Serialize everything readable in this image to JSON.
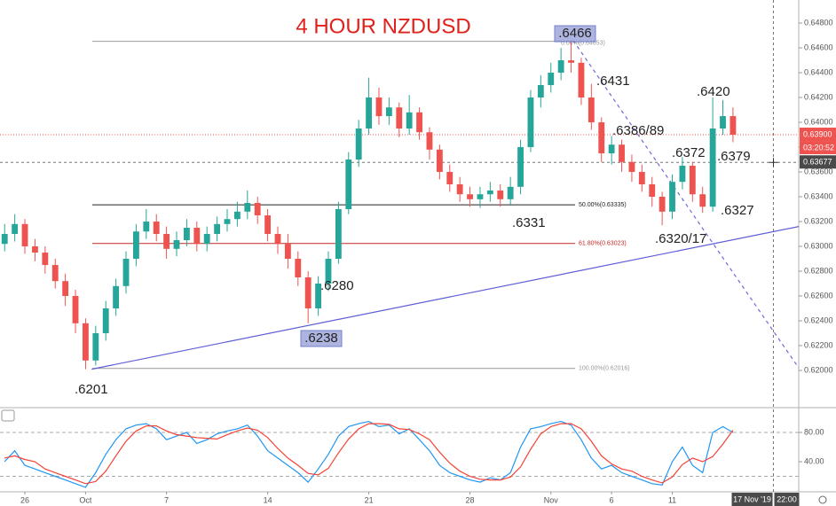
{
  "chart_data": [
    {
      "type": "candlestick",
      "title": "4 HOUR NZDUSD",
      "x": [
        -1,
        -0.5,
        0,
        0.5,
        1,
        1.5,
        2,
        2.5,
        3,
        3.5,
        4,
        4.5,
        5,
        5.5,
        6,
        6.5,
        7,
        7.5,
        8,
        8.5,
        9,
        9.5,
        10,
        10.5,
        11,
        11.5,
        12,
        12.5,
        13,
        13.5,
        14,
        14.5,
        15,
        15.5,
        16,
        16.5,
        17,
        17.5,
        18,
        18.5,
        19,
        19.5,
        20,
        20.5,
        21,
        21.5,
        22,
        22.5,
        23,
        23.5,
        24,
        24.5,
        25,
        25.5,
        26,
        26.5,
        27,
        27.5,
        28,
        28.5,
        29,
        29.5,
        30,
        30.5,
        31,
        31.5,
        32,
        32.5,
        33,
        33.5,
        34,
        34.5,
        35
      ],
      "open": [
        0.6302,
        0.631,
        0.6318,
        0.63,
        0.6295,
        0.6285,
        0.6272,
        0.626,
        0.6238,
        0.6208,
        0.623,
        0.625,
        0.6268,
        0.629,
        0.6312,
        0.632,
        0.631,
        0.6298,
        0.6305,
        0.6315,
        0.6302,
        0.631,
        0.6318,
        0.6322,
        0.6328,
        0.6335,
        0.6325,
        0.631,
        0.6302,
        0.629,
        0.6275,
        0.625,
        0.627,
        0.629,
        0.633,
        0.637,
        0.6395,
        0.642,
        0.6405,
        0.6412,
        0.6395,
        0.6408,
        0.6392,
        0.6378,
        0.636,
        0.635,
        0.6342,
        0.6338,
        0.6342,
        0.6345,
        0.6338,
        0.6348,
        0.638,
        0.642,
        0.643,
        0.644,
        0.645,
        0.6448,
        0.642,
        0.64,
        0.6375,
        0.6382,
        0.6368,
        0.636,
        0.635,
        0.634,
        0.6328,
        0.6352,
        0.6365,
        0.6342,
        0.6332,
        0.6395,
        0.6405
      ],
      "high": [
        0.6318,
        0.6326,
        0.6322,
        0.6306,
        0.63,
        0.629,
        0.6278,
        0.6265,
        0.6242,
        0.6236,
        0.6256,
        0.6274,
        0.6296,
        0.6318,
        0.633,
        0.6326,
        0.6316,
        0.6312,
        0.6322,
        0.632,
        0.6316,
        0.6324,
        0.633,
        0.6336,
        0.6345,
        0.634,
        0.633,
        0.6316,
        0.631,
        0.6296,
        0.628,
        0.6276,
        0.6296,
        0.6336,
        0.6376,
        0.6402,
        0.6436,
        0.6428,
        0.642,
        0.6416,
        0.6422,
        0.6412,
        0.6396,
        0.6382,
        0.6366,
        0.6356,
        0.6348,
        0.6348,
        0.6352,
        0.635,
        0.6356,
        0.6386,
        0.6426,
        0.6438,
        0.6448,
        0.646,
        0.6466,
        0.6452,
        0.6431,
        0.6404,
        0.6389,
        0.6386,
        0.6374,
        0.6366,
        0.6356,
        0.6344,
        0.6358,
        0.6372,
        0.6368,
        0.6348,
        0.642,
        0.6418,
        0.6412
      ],
      "low": [
        0.6296,
        0.6304,
        0.6294,
        0.6288,
        0.6278,
        0.6266,
        0.6252,
        0.623,
        0.6201,
        0.6204,
        0.6224,
        0.6244,
        0.6262,
        0.6284,
        0.6306,
        0.6304,
        0.629,
        0.6292,
        0.63,
        0.6296,
        0.6296,
        0.6304,
        0.6312,
        0.6316,
        0.6322,
        0.6318,
        0.6304,
        0.6294,
        0.6282,
        0.6268,
        0.6238,
        0.6244,
        0.6264,
        0.6286,
        0.6326,
        0.6364,
        0.639,
        0.6398,
        0.6398,
        0.6388,
        0.639,
        0.6386,
        0.637,
        0.6354,
        0.6344,
        0.6336,
        0.6332,
        0.6331,
        0.6336,
        0.6332,
        0.6334,
        0.6342,
        0.6376,
        0.6412,
        0.6424,
        0.6434,
        0.644,
        0.6414,
        0.6394,
        0.6368,
        0.6366,
        0.636,
        0.6352,
        0.6344,
        0.6332,
        0.6317,
        0.6322,
        0.6346,
        0.6336,
        0.6327,
        0.6328,
        0.639,
        0.6384
      ],
      "close": [
        0.631,
        0.6318,
        0.63,
        0.6295,
        0.6285,
        0.6272,
        0.626,
        0.6238,
        0.6208,
        0.623,
        0.625,
        0.6268,
        0.629,
        0.6312,
        0.632,
        0.631,
        0.6298,
        0.6305,
        0.6315,
        0.6302,
        0.631,
        0.6318,
        0.6322,
        0.6328,
        0.6335,
        0.6325,
        0.631,
        0.6302,
        0.629,
        0.6275,
        0.625,
        0.627,
        0.629,
        0.633,
        0.637,
        0.6395,
        0.642,
        0.6405,
        0.6412,
        0.6395,
        0.6408,
        0.6392,
        0.6378,
        0.636,
        0.635,
        0.6342,
        0.6338,
        0.6342,
        0.6345,
        0.6338,
        0.6348,
        0.638,
        0.642,
        0.643,
        0.644,
        0.645,
        0.6448,
        0.642,
        0.64,
        0.6375,
        0.6382,
        0.6368,
        0.636,
        0.635,
        0.634,
        0.6328,
        0.6352,
        0.6365,
        0.6342,
        0.6332,
        0.6395,
        0.6405,
        0.639
      ],
      "up_color": "#26a69a",
      "down_color": "#ef5350",
      "xlim": [
        -1.23,
        38.25
      ],
      "xticks": [
        {
          "value": 0,
          "label": "26"
        },
        {
          "value": 3,
          "label": "Oct"
        },
        {
          "value": 7,
          "label": "7"
        },
        {
          "value": 12,
          "label": "14"
        },
        {
          "value": 17,
          "label": "21"
        },
        {
          "value": 22,
          "label": "28"
        },
        {
          "value": 26,
          "label": "Nov"
        },
        {
          "value": 29,
          "label": "6"
        },
        {
          "value": 32,
          "label": "11"
        }
      ],
      "ylim": [
        0.617,
        0.64986
      ],
      "yticks": [
        {
          "value": 0.648,
          "label": "0.64800"
        },
        {
          "value": 0.646,
          "label": "0.64600"
        },
        {
          "value": 0.644,
          "label": "0.64400"
        },
        {
          "value": 0.642,
          "label": "0.64200"
        },
        {
          "value": 0.64,
          "label": "0.64000"
        },
        {
          "value": 0.638,
          "label": "0.63800"
        },
        {
          "value": 0.636,
          "label": "0.63600"
        },
        {
          "value": 0.634,
          "label": "0.63400"
        },
        {
          "value": 0.632,
          "label": "0.63200"
        },
        {
          "value": 0.63,
          "label": "0.63000"
        },
        {
          "value": 0.628,
          "label": "0.62800"
        },
        {
          "value": 0.626,
          "label": "0.62600"
        },
        {
          "value": 0.624,
          "label": "0.62400"
        },
        {
          "value": 0.622,
          "label": "0.62200"
        },
        {
          "value": 0.62,
          "label": "0.62000"
        }
      ],
      "levels": [
        {
          "value": 0.64653,
          "label": "0.00%(0.64653)",
          "color": "#999999"
        },
        {
          "value": 0.63335,
          "label": "50.00%(0.63335)",
          "color": "#222222"
        },
        {
          "value": 0.63023,
          "label": "61.80%(0.63023)",
          "color": "#c62828"
        },
        {
          "value": 0.62016,
          "label": "100.00%(0.62016)",
          "color": "#999999"
        }
      ],
      "trendlines": [
        {
          "x": [
            3.3,
            38.25
          ],
          "y": [
            0.6201,
            0.6316
          ],
          "color": "#5c5cd6",
          "style": "solid"
        },
        {
          "x": [
            27.1,
            38.25
          ],
          "y": [
            0.6466,
            0.6202
          ],
          "color": "#6b6bd8",
          "style": "dashed"
        }
      ],
      "annotations": [
        ".6466",
        ".6431",
        ".6420",
        ".6386/89",
        ".6372",
        ".6379",
        ".6327",
        ".6320/17",
        ".6331",
        ".6280",
        ".6238",
        ".6201"
      ],
      "last_price": {
        "value": 0.639,
        "label": "0.63900"
      },
      "countdown": "03:20:52",
      "crosshair": {
        "x": 37,
        "y": {
          "value": 0.63677,
          "label": "0.63677"
        },
        "date": "17 Nov '19",
        "time": "22:00"
      }
    },
    {
      "type": "line",
      "x": [
        -1,
        -0.5,
        0,
        0.5,
        1,
        1.5,
        2,
        2.5,
        3,
        3.5,
        4,
        4.5,
        5,
        5.5,
        6,
        6.5,
        7,
        7.5,
        8,
        8.5,
        9,
        9.5,
        10,
        10.5,
        11,
        11.5,
        12,
        12.5,
        13,
        13.5,
        14,
        14.5,
        15,
        15.5,
        16,
        16.5,
        17,
        17.5,
        18,
        18.5,
        19,
        19.5,
        20,
        20.5,
        21,
        21.5,
        22,
        22.5,
        23,
        23.5,
        24,
        24.5,
        25,
        25.5,
        26,
        26.5,
        27,
        27.5,
        28,
        28.5,
        29,
        29.5,
        30,
        30.5,
        31,
        31.5,
        32,
        32.5,
        33,
        33.5,
        34,
        34.5,
        35
      ],
      "series": [
        {
          "color": "#2196f3",
          "values": [
            40,
            55,
            35,
            30,
            25,
            20,
            15,
            10,
            5,
            25,
            50,
            70,
            85,
            90,
            92,
            85,
            70,
            75,
            80,
            65,
            70,
            78,
            82,
            85,
            90,
            75,
            55,
            45,
            35,
            25,
            12,
            30,
            50,
            75,
            88,
            92,
            95,
            88,
            90,
            78,
            85,
            70,
            55,
            35,
            25,
            20,
            15,
            12,
            18,
            15,
            25,
            60,
            85,
            88,
            92,
            95,
            90,
            70,
            45,
            30,
            35,
            25,
            20,
            15,
            10,
            8,
            40,
            60,
            35,
            25,
            80,
            88,
            80
          ]
        },
        {
          "color": "#f44336",
          "values": [
            45,
            48,
            43,
            40,
            30,
            25,
            20,
            15,
            10,
            13,
            27,
            48,
            68,
            82,
            89,
            89,
            82,
            77,
            75,
            73,
            72,
            71,
            77,
            82,
            86,
            83,
            73,
            58,
            45,
            35,
            24,
            22,
            31,
            52,
            71,
            85,
            92,
            92,
            91,
            85,
            84,
            78,
            70,
            53,
            38,
            27,
            20,
            16,
            15,
            15,
            19,
            33,
            57,
            78,
            88,
            92,
            92,
            85,
            68,
            48,
            37,
            30,
            27,
            20,
            15,
            11,
            19,
            36,
            45,
            40,
            47,
            64,
            83
          ]
        }
      ],
      "xlim": [
        -1.23,
        38.25
      ],
      "ylim": [
        -1.2,
        113.9
      ],
      "yticks": [
        {
          "value": 80,
          "label": "80.00"
        },
        {
          "value": 40,
          "label": "40.00"
        }
      ],
      "bands": [
        80,
        20
      ]
    }
  ]
}
